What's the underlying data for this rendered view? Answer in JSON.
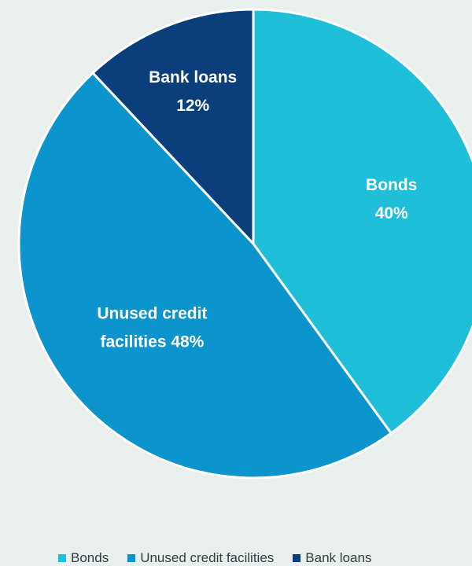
{
  "chart_data": {
    "type": "pie",
    "title": "",
    "slices": [
      {
        "label": "Bonds",
        "value": 40,
        "color": "#20bfd9",
        "label_lines": [
          "Bonds",
          "40%"
        ]
      },
      {
        "label": "Unused credit facilities",
        "value": 48,
        "color": "#0c94cc",
        "label_lines": [
          "Unused credit",
          "facilities 48%"
        ]
      },
      {
        "label": "Bank loans",
        "value": 12,
        "color": "#0a3f7b",
        "label_lines": [
          "Bank loans",
          "12%"
        ]
      }
    ],
    "legend": {
      "position": "bottom",
      "entries": [
        "Bonds",
        "Unused credit facilities",
        "Bank loans"
      ]
    }
  }
}
